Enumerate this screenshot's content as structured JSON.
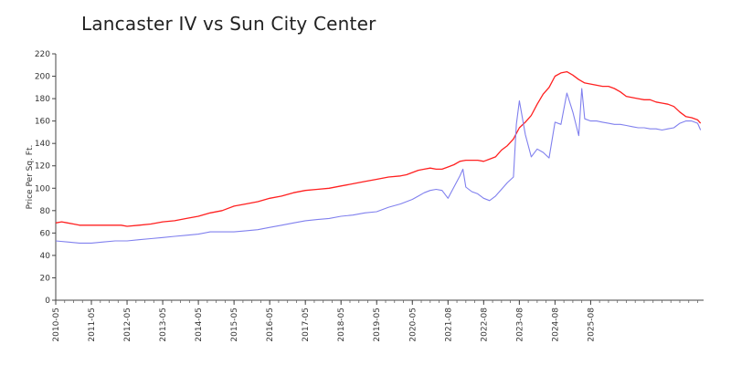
{
  "chart_data": {
    "type": "line",
    "title": "Lancaster IV vs Sun City Center",
    "xlabel": "",
    "ylabel": "Price Per Sq. Ft.",
    "ylim": [
      0,
      220
    ],
    "yticks": [
      0,
      20,
      40,
      60,
      80,
      100,
      120,
      140,
      160,
      180,
      200,
      220
    ],
    "xticks": [
      "2010-05",
      "2011-05",
      "2012-05",
      "2013-05",
      "2014-05",
      "2015-05",
      "2016-05",
      "2017-05",
      "2018-05",
      "2019-05",
      "2020-05",
      "2021-08",
      "2022-08",
      "2023-08",
      "2024-08",
      "2025-08"
    ],
    "xtick_dates": [
      "2010-05",
      "2011-05",
      "2012-05",
      "2013-05",
      "2014-05",
      "2015-05",
      "2016-05",
      "2017-05",
      "2018-05",
      "2019-05",
      "2020-05",
      "2021-05",
      "2022-05",
      "2023-05",
      "2024-05",
      "2025-05"
    ],
    "grid": false,
    "legend": "none",
    "series": [
      {
        "color": "#ff2020",
        "points": [
          [
            "2010-05",
            69
          ],
          [
            "2010-07",
            70
          ],
          [
            "2010-09",
            69
          ],
          [
            "2010-11",
            68
          ],
          [
            "2011-01",
            67
          ],
          [
            "2011-05",
            67
          ],
          [
            "2011-09",
            67
          ],
          [
            "2012-01",
            67
          ],
          [
            "2012-03",
            67
          ],
          [
            "2012-05",
            66
          ],
          [
            "2012-09",
            67
          ],
          [
            "2013-01",
            68
          ],
          [
            "2013-05",
            70
          ],
          [
            "2013-09",
            71
          ],
          [
            "2014-01",
            73
          ],
          [
            "2014-05",
            75
          ],
          [
            "2014-09",
            78
          ],
          [
            "2015-01",
            80
          ],
          [
            "2015-05",
            84
          ],
          [
            "2015-09",
            86
          ],
          [
            "2016-01",
            88
          ],
          [
            "2016-05",
            91
          ],
          [
            "2016-09",
            93
          ],
          [
            "2017-01",
            96
          ],
          [
            "2017-05",
            98
          ],
          [
            "2017-09",
            99
          ],
          [
            "2018-01",
            100
          ],
          [
            "2018-05",
            102
          ],
          [
            "2018-09",
            104
          ],
          [
            "2019-01",
            106
          ],
          [
            "2019-05",
            108
          ],
          [
            "2019-09",
            110
          ],
          [
            "2020-01",
            111
          ],
          [
            "2020-03",
            112
          ],
          [
            "2020-07",
            116
          ],
          [
            "2020-09",
            117
          ],
          [
            "2020-11",
            118
          ],
          [
            "2021-01",
            117
          ],
          [
            "2021-03",
            117
          ],
          [
            "2021-05",
            119
          ],
          [
            "2021-07",
            121
          ],
          [
            "2021-09",
            124
          ],
          [
            "2021-11",
            125
          ],
          [
            "2022-01",
            125
          ],
          [
            "2022-03",
            125
          ],
          [
            "2022-05",
            124
          ],
          [
            "2022-07",
            126
          ],
          [
            "2022-09",
            128
          ],
          [
            "2022-11",
            134
          ],
          [
            "2023-01",
            138
          ],
          [
            "2023-03",
            144
          ],
          [
            "2023-05",
            154
          ],
          [
            "2023-07",
            159
          ],
          [
            "2023-09",
            165
          ],
          [
            "2023-11",
            175
          ],
          [
            "2024-01",
            184
          ],
          [
            "2024-03",
            190
          ],
          [
            "2024-05",
            200
          ],
          [
            "2024-07",
            203
          ],
          [
            "2024-09",
            204
          ],
          [
            "2024-11",
            201
          ],
          [
            "2025-01",
            197
          ],
          [
            "2025-03",
            194
          ],
          [
            "2025-05",
            193
          ],
          [
            "2025-07",
            192
          ],
          [
            "2025-09",
            191
          ],
          [
            "2025-11",
            191
          ],
          [
            "2026-01",
            189
          ],
          [
            "2026-03",
            186
          ],
          [
            "2026-05",
            182
          ],
          [
            "2026-07",
            181
          ],
          [
            "2026-09",
            180
          ],
          [
            "2026-11",
            179
          ],
          [
            "2027-01",
            179
          ],
          [
            "2027-03",
            177
          ],
          [
            "2027-05",
            176
          ],
          [
            "2027-07",
            175
          ],
          [
            "2027-09",
            173
          ],
          [
            "2027-11",
            168
          ],
          [
            "2028-01",
            164
          ],
          [
            "2028-03",
            163
          ],
          [
            "2028-05",
            161
          ],
          [
            "2028-06",
            158
          ]
        ]
      },
      {
        "color": "#8080ee",
        "points": [
          [
            "2010-05",
            53
          ],
          [
            "2010-09",
            52
          ],
          [
            "2011-01",
            51
          ],
          [
            "2011-05",
            51
          ],
          [
            "2011-09",
            52
          ],
          [
            "2012-01",
            53
          ],
          [
            "2012-05",
            53
          ],
          [
            "2012-09",
            54
          ],
          [
            "2013-01",
            55
          ],
          [
            "2013-05",
            56
          ],
          [
            "2013-09",
            57
          ],
          [
            "2014-01",
            58
          ],
          [
            "2014-05",
            59
          ],
          [
            "2014-09",
            61
          ],
          [
            "2015-01",
            61
          ],
          [
            "2015-05",
            61
          ],
          [
            "2015-09",
            62
          ],
          [
            "2016-01",
            63
          ],
          [
            "2016-05",
            65
          ],
          [
            "2016-09",
            67
          ],
          [
            "2017-01",
            69
          ],
          [
            "2017-05",
            71
          ],
          [
            "2017-09",
            72
          ],
          [
            "2018-01",
            73
          ],
          [
            "2018-05",
            75
          ],
          [
            "2018-09",
            76
          ],
          [
            "2019-01",
            78
          ],
          [
            "2019-05",
            79
          ],
          [
            "2019-09",
            83
          ],
          [
            "2020-01",
            86
          ],
          [
            "2020-05",
            90
          ],
          [
            "2020-07",
            93
          ],
          [
            "2020-09",
            96
          ],
          [
            "2020-11",
            98
          ],
          [
            "2021-01",
            99
          ],
          [
            "2021-03",
            98
          ],
          [
            "2021-05",
            91
          ],
          [
            "2021-07",
            101
          ],
          [
            "2021-09",
            111
          ],
          [
            "2021-10",
            117
          ],
          [
            "2021-11",
            101
          ],
          [
            "2022-01",
            97
          ],
          [
            "2022-03",
            95
          ],
          [
            "2022-05",
            91
          ],
          [
            "2022-07",
            89
          ],
          [
            "2022-09",
            93
          ],
          [
            "2022-11",
            99
          ],
          [
            "2023-01",
            105
          ],
          [
            "2023-03",
            110
          ],
          [
            "2023-04",
            157
          ],
          [
            "2023-05",
            178
          ],
          [
            "2023-07",
            148
          ],
          [
            "2023-09",
            128
          ],
          [
            "2023-11",
            135
          ],
          [
            "2024-01",
            132
          ],
          [
            "2024-03",
            127
          ],
          [
            "2024-05",
            159
          ],
          [
            "2024-07",
            157
          ],
          [
            "2024-09",
            185
          ],
          [
            "2024-11",
            168
          ],
          [
            "2025-01",
            147
          ],
          [
            "2025-02",
            189
          ],
          [
            "2025-03",
            162
          ],
          [
            "2025-05",
            160
          ],
          [
            "2025-07",
            160
          ],
          [
            "2025-09",
            159
          ],
          [
            "2025-11",
            158
          ],
          [
            "2026-01",
            157
          ],
          [
            "2026-03",
            157
          ],
          [
            "2026-05",
            156
          ],
          [
            "2026-07",
            155
          ],
          [
            "2026-09",
            154
          ],
          [
            "2026-11",
            154
          ],
          [
            "2027-01",
            153
          ],
          [
            "2027-03",
            153
          ],
          [
            "2027-05",
            152
          ],
          [
            "2027-07",
            153
          ],
          [
            "2027-09",
            154
          ],
          [
            "2027-11",
            158
          ],
          [
            "2028-01",
            160
          ],
          [
            "2028-03",
            160
          ],
          [
            "2028-05",
            158
          ],
          [
            "2028-06",
            152
          ]
        ]
      }
    ]
  }
}
